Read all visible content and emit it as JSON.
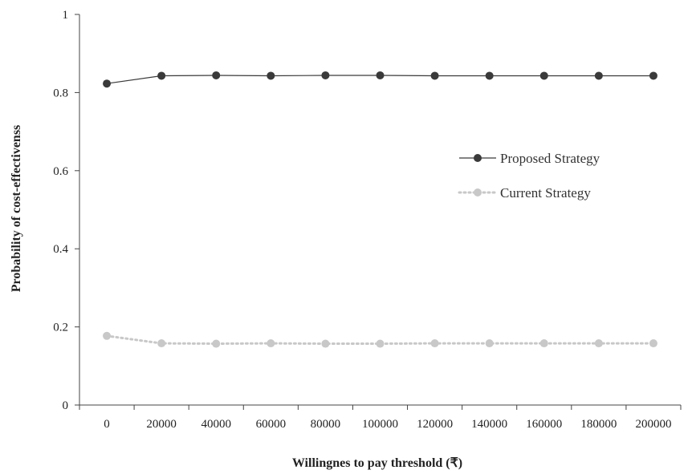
{
  "chart_data": {
    "type": "line",
    "title": "",
    "xlabel": "Willingnes to pay threshold (₹)",
    "ylabel": "Probability of cost-effectivenss",
    "categories": [
      "0",
      "20000",
      "40000",
      "60000",
      "80000",
      "100000",
      "120000",
      "140000",
      "160000",
      "180000",
      "200000"
    ],
    "ylim": [
      0,
      1
    ],
    "yticks": [
      "0",
      "0.2",
      "0.4",
      "0.6",
      "0.8",
      "1"
    ],
    "grid": false,
    "legend_position": "right",
    "series": [
      {
        "name": "Proposed Strategy",
        "color": "#3a3a3a",
        "line_style": "solid",
        "values": [
          0.823,
          0.843,
          0.844,
          0.843,
          0.844,
          0.844,
          0.843,
          0.843,
          0.843,
          0.843,
          0.843
        ]
      },
      {
        "name": "Current Strategy",
        "color": "#c8c8c8",
        "line_style": "dotted",
        "values": [
          0.177,
          0.158,
          0.157,
          0.158,
          0.157,
          0.157,
          0.158,
          0.158,
          0.158,
          0.158,
          0.158
        ]
      }
    ]
  }
}
